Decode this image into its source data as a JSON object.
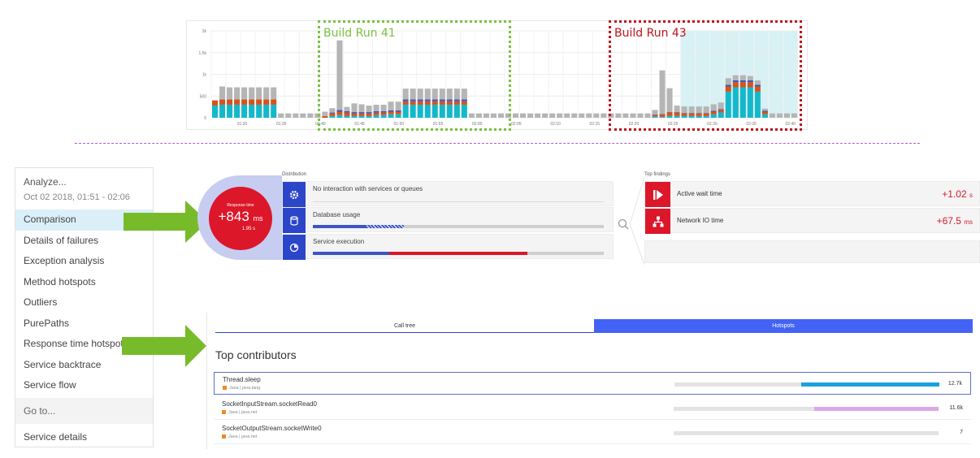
{
  "chart": {
    "build41_label": "Build Run 41",
    "build43_label": "Build Run 43",
    "colors": {
      "green_box": "#7ac143",
      "red_box": "#c0141c",
      "cyan": "#14b8cc",
      "orange": "#d4541a",
      "gray": "#b5b5b5",
      "blue": "#3d55c4",
      "highlight": "#d7f1f5"
    }
  },
  "chart_data": {
    "type": "bar",
    "stacked": true,
    "y_ticks": [
      "2k",
      "1.5k",
      "1k",
      "500",
      "0"
    ],
    "ylim": [
      0,
      2000
    ],
    "x_ticks": [
      "01:30",
      "01:35",
      "01:40",
      "01:45",
      "01:50",
      "01:55",
      "02:00",
      "02:05",
      "02:10",
      "02:15",
      "02:20",
      "02:25",
      "02:30",
      "02:35",
      "02:40"
    ],
    "series": [
      {
        "color": "cyan",
        "values": [
          280,
          300,
          300,
          300,
          300,
          300,
          300,
          300,
          300,
          0,
          0,
          0,
          0,
          0,
          0,
          0,
          40,
          60,
          40,
          40,
          40,
          40,
          60,
          60,
          80,
          80,
          300,
          300,
          300,
          300,
          300,
          300,
          300,
          300,
          300,
          0,
          0,
          0,
          0,
          0,
          0,
          0,
          0,
          0,
          0,
          0,
          0,
          0,
          0,
          0,
          0,
          0,
          0,
          0,
          0,
          0,
          0,
          0,
          0,
          0,
          30,
          20,
          40,
          40,
          40,
          40,
          40,
          40,
          80,
          120,
          600,
          700,
          700,
          700,
          600,
          80,
          0,
          0,
          0,
          0
        ]
      },
      {
        "color": "orange",
        "values": [
          120,
          120,
          120,
          120,
          120,
          120,
          120,
          120,
          120,
          0,
          0,
          0,
          0,
          0,
          0,
          40,
          60,
          80,
          80,
          60,
          60,
          60,
          60,
          60,
          60,
          60,
          80,
          80,
          80,
          80,
          80,
          80,
          80,
          80,
          80,
          0,
          0,
          0,
          0,
          0,
          0,
          0,
          0,
          0,
          0,
          0,
          0,
          0,
          0,
          0,
          0,
          0,
          0,
          0,
          0,
          0,
          0,
          0,
          0,
          0,
          40,
          60,
          80,
          80,
          60,
          60,
          60,
          60,
          60,
          60,
          120,
          120,
          120,
          120,
          120,
          60,
          0,
          0,
          0,
          0
        ]
      },
      {
        "color": "blue",
        "values": [
          0,
          0,
          0,
          0,
          0,
          0,
          0,
          0,
          0,
          0,
          0,
          0,
          0,
          0,
          0,
          0,
          20,
          40,
          30,
          30,
          30,
          30,
          30,
          30,
          30,
          30,
          40,
          40,
          40,
          40,
          40,
          40,
          40,
          40,
          40,
          0,
          0,
          0,
          0,
          0,
          0,
          0,
          0,
          0,
          0,
          0,
          0,
          0,
          0,
          0,
          0,
          0,
          0,
          0,
          0,
          0,
          0,
          0,
          0,
          0,
          10,
          10,
          10,
          10,
          10,
          10,
          10,
          10,
          20,
          20,
          40,
          40,
          40,
          40,
          40,
          20,
          0,
          0,
          0,
          0
        ]
      },
      {
        "color": "gray",
        "values": [
          0,
          300,
          280,
          280,
          280,
          280,
          280,
          280,
          280,
          100,
          100,
          100,
          100,
          100,
          100,
          100,
          100,
          1600,
          100,
          200,
          180,
          150,
          150,
          150,
          200,
          200,
          250,
          250,
          250,
          250,
          250,
          250,
          250,
          250,
          250,
          100,
          100,
          100,
          100,
          100,
          100,
          100,
          100,
          100,
          100,
          100,
          100,
          100,
          100,
          100,
          100,
          100,
          100,
          100,
          100,
          100,
          100,
          100,
          100,
          100,
          100,
          1000,
          550,
          150,
          150,
          150,
          150,
          150,
          150,
          150,
          150,
          120,
          120,
          100,
          100,
          50,
          100,
          100,
          100,
          100
        ]
      }
    ]
  },
  "menu": {
    "title": "Analyze...",
    "range": "Oct 02 2018, 01:51 - 02:06",
    "items": [
      "Comparison",
      "Details of failures",
      "Exception analysis",
      "Method hotspots",
      "Outliers",
      "PurePaths",
      "Response time hotspots",
      "Service backtrace",
      "Service flow"
    ],
    "goto": "Go to...",
    "service_details": "Service details"
  },
  "response": {
    "label": "Response time",
    "value": "+843",
    "unit": "ms",
    "base": "1.95 s"
  },
  "distribution": {
    "title": "Distribution",
    "rows": [
      {
        "icon": "gear-icon",
        "text": "No interaction with services or queues"
      },
      {
        "icon": "database-icon",
        "text": "Database usage"
      },
      {
        "icon": "clock-icon",
        "text": "Service execution"
      }
    ]
  },
  "findings": {
    "title": "Top findings",
    "rows": [
      {
        "icon": "wait-icon",
        "label": "Active wait time",
        "value": "+1.02",
        "unit": "s"
      },
      {
        "icon": "network-icon",
        "label": "Network IO time",
        "value": "+67.5",
        "unit": "ms"
      }
    ]
  },
  "hotspots": {
    "tab_call_tree": "Call tree",
    "tab_hotspots": "Hotspots",
    "heading": "Top contributors",
    "rows": [
      {
        "name": "Thread.sleep",
        "meta": "Java | java.lang",
        "value": "12.7k",
        "fill_fraction": 0.52,
        "fill_color": "#1aa1e0"
      },
      {
        "name": "SocketInputStream.socketRead0",
        "meta": "Java | java.net",
        "value": "11.6k",
        "fill_fraction": 0.47,
        "fill_color": "#d9a9e6"
      },
      {
        "name": "SocketOutputStream.socketWrite0",
        "meta": "Java | java.net",
        "value": "7",
        "fill_fraction": 0,
        "fill_color": "#1aa1e0"
      }
    ]
  }
}
